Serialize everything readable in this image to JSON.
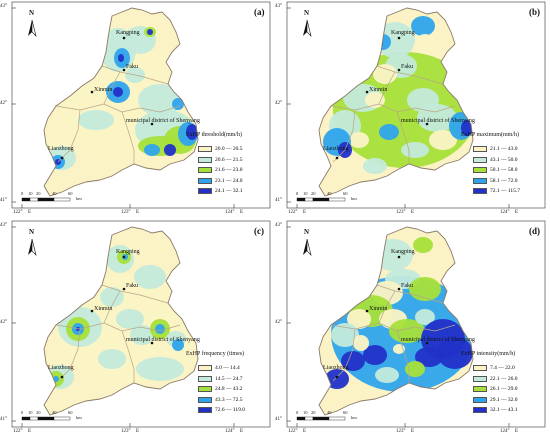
{
  "panels": [
    {
      "id": "a",
      "tag": "(a)",
      "legend_title": "ExHP threshold(mm/h)",
      "legend": [
        {
          "label": "20.0 — 20.5",
          "color": "#fbf3c5"
        },
        {
          "label": "20.6 — 21.5",
          "color": "#c3eadb"
        },
        {
          "label": "21.6 — 23.0",
          "color": "#a6e03a"
        },
        {
          "label": "23.1 — 24.0",
          "color": "#2fa4ec"
        },
        {
          "label": "24.1 — 32.1",
          "color": "#2232c8"
        }
      ]
    },
    {
      "id": "b",
      "tag": "(b)",
      "legend_title": "ExHP maximum(mm/h)",
      "legend": [
        {
          "label": "21.1 — 43.0",
          "color": "#fbf3c5"
        },
        {
          "label": "43.1 — 50.0",
          "color": "#c3eadb"
        },
        {
          "label": "50.1 — 58.0",
          "color": "#a6e03a"
        },
        {
          "label": "58.1 — 72.0",
          "color": "#2fa4ec"
        },
        {
          "label": "72.1 — 115.7",
          "color": "#2232c8"
        }
      ]
    },
    {
      "id": "c",
      "tag": "(c)",
      "legend_title": "ExHP frequency (times)",
      "legend": [
        {
          "label": "4.0 — 14.4",
          "color": "#fbf3c5"
        },
        {
          "label": "14.5 — 24.7",
          "color": "#c3eadb"
        },
        {
          "label": "24.8 — 43.2",
          "color": "#a6e03a"
        },
        {
          "label": "43.3 — 72.5",
          "color": "#2fa4ec"
        },
        {
          "label": "72.6 — 119.0",
          "color": "#2232c8"
        }
      ]
    },
    {
      "id": "d",
      "tag": "(d)",
      "legend_title": "ExHP intensity(mm/h)",
      "legend": [
        {
          "label": "7.4 — 22.0",
          "color": "#fbf3c5"
        },
        {
          "label": "22.1 — 26.0",
          "color": "#c3eadb"
        },
        {
          "label": "26.1 — 29.0",
          "color": "#a6e03a"
        },
        {
          "label": "29.1 — 32.0",
          "color": "#2fa4ec"
        },
        {
          "label": "32.1 — 43.1",
          "color": "#2232c8"
        }
      ]
    }
  ],
  "places": {
    "kangping": "Kangping",
    "faku": "Faku",
    "xinmin": "Xinmin",
    "shenyang": "municipal district of Shenyang",
    "liaozhong": "Liaozhong"
  },
  "north_label": "N",
  "scale": {
    "ticks": [
      "0",
      "10",
      "20",
      "40",
      "60"
    ],
    "unit": "km"
  },
  "lat_labels": [
    "43°",
    "42°",
    "41°"
  ],
  "lon_labels": [
    "122°",
    "E",
    "123°",
    "E",
    "124°",
    "E"
  ]
}
